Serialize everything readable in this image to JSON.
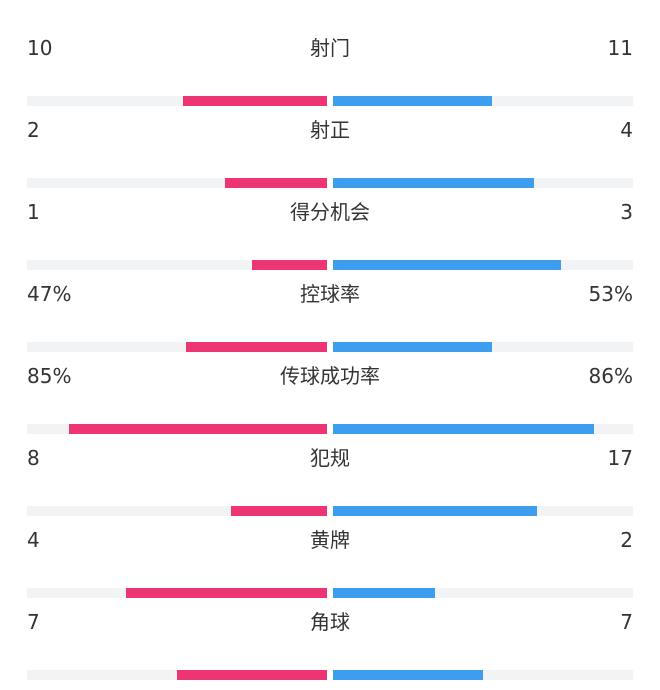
{
  "colors": {
    "home_bar": "#ee3573",
    "away_bar": "#3d9ef0",
    "track": "#f2f3f5",
    "text": "#333333"
  },
  "stats": [
    {
      "label": "射门",
      "left": "10",
      "right": "11",
      "left_fill": 0.48,
      "right_fill": 0.53
    },
    {
      "label": "射正",
      "left": "2",
      "right": "4",
      "left_fill": 0.34,
      "right_fill": 0.67
    },
    {
      "label": "得分机会",
      "left": "1",
      "right": "3",
      "left_fill": 0.25,
      "right_fill": 0.76
    },
    {
      "label": "控球率",
      "left": "47%",
      "right": "53%",
      "left_fill": 0.47,
      "right_fill": 0.53
    },
    {
      "label": "传球成功率",
      "left": "85%",
      "right": "86%",
      "left_fill": 0.86,
      "right_fill": 0.87
    },
    {
      "label": "犯规",
      "left": "8",
      "right": "17",
      "left_fill": 0.32,
      "right_fill": 0.68
    },
    {
      "label": "黄牌",
      "left": "4",
      "right": "2",
      "left_fill": 0.67,
      "right_fill": 0.34
    },
    {
      "label": "角球",
      "left": "7",
      "right": "7",
      "left_fill": 0.5,
      "right_fill": 0.5
    }
  ]
}
